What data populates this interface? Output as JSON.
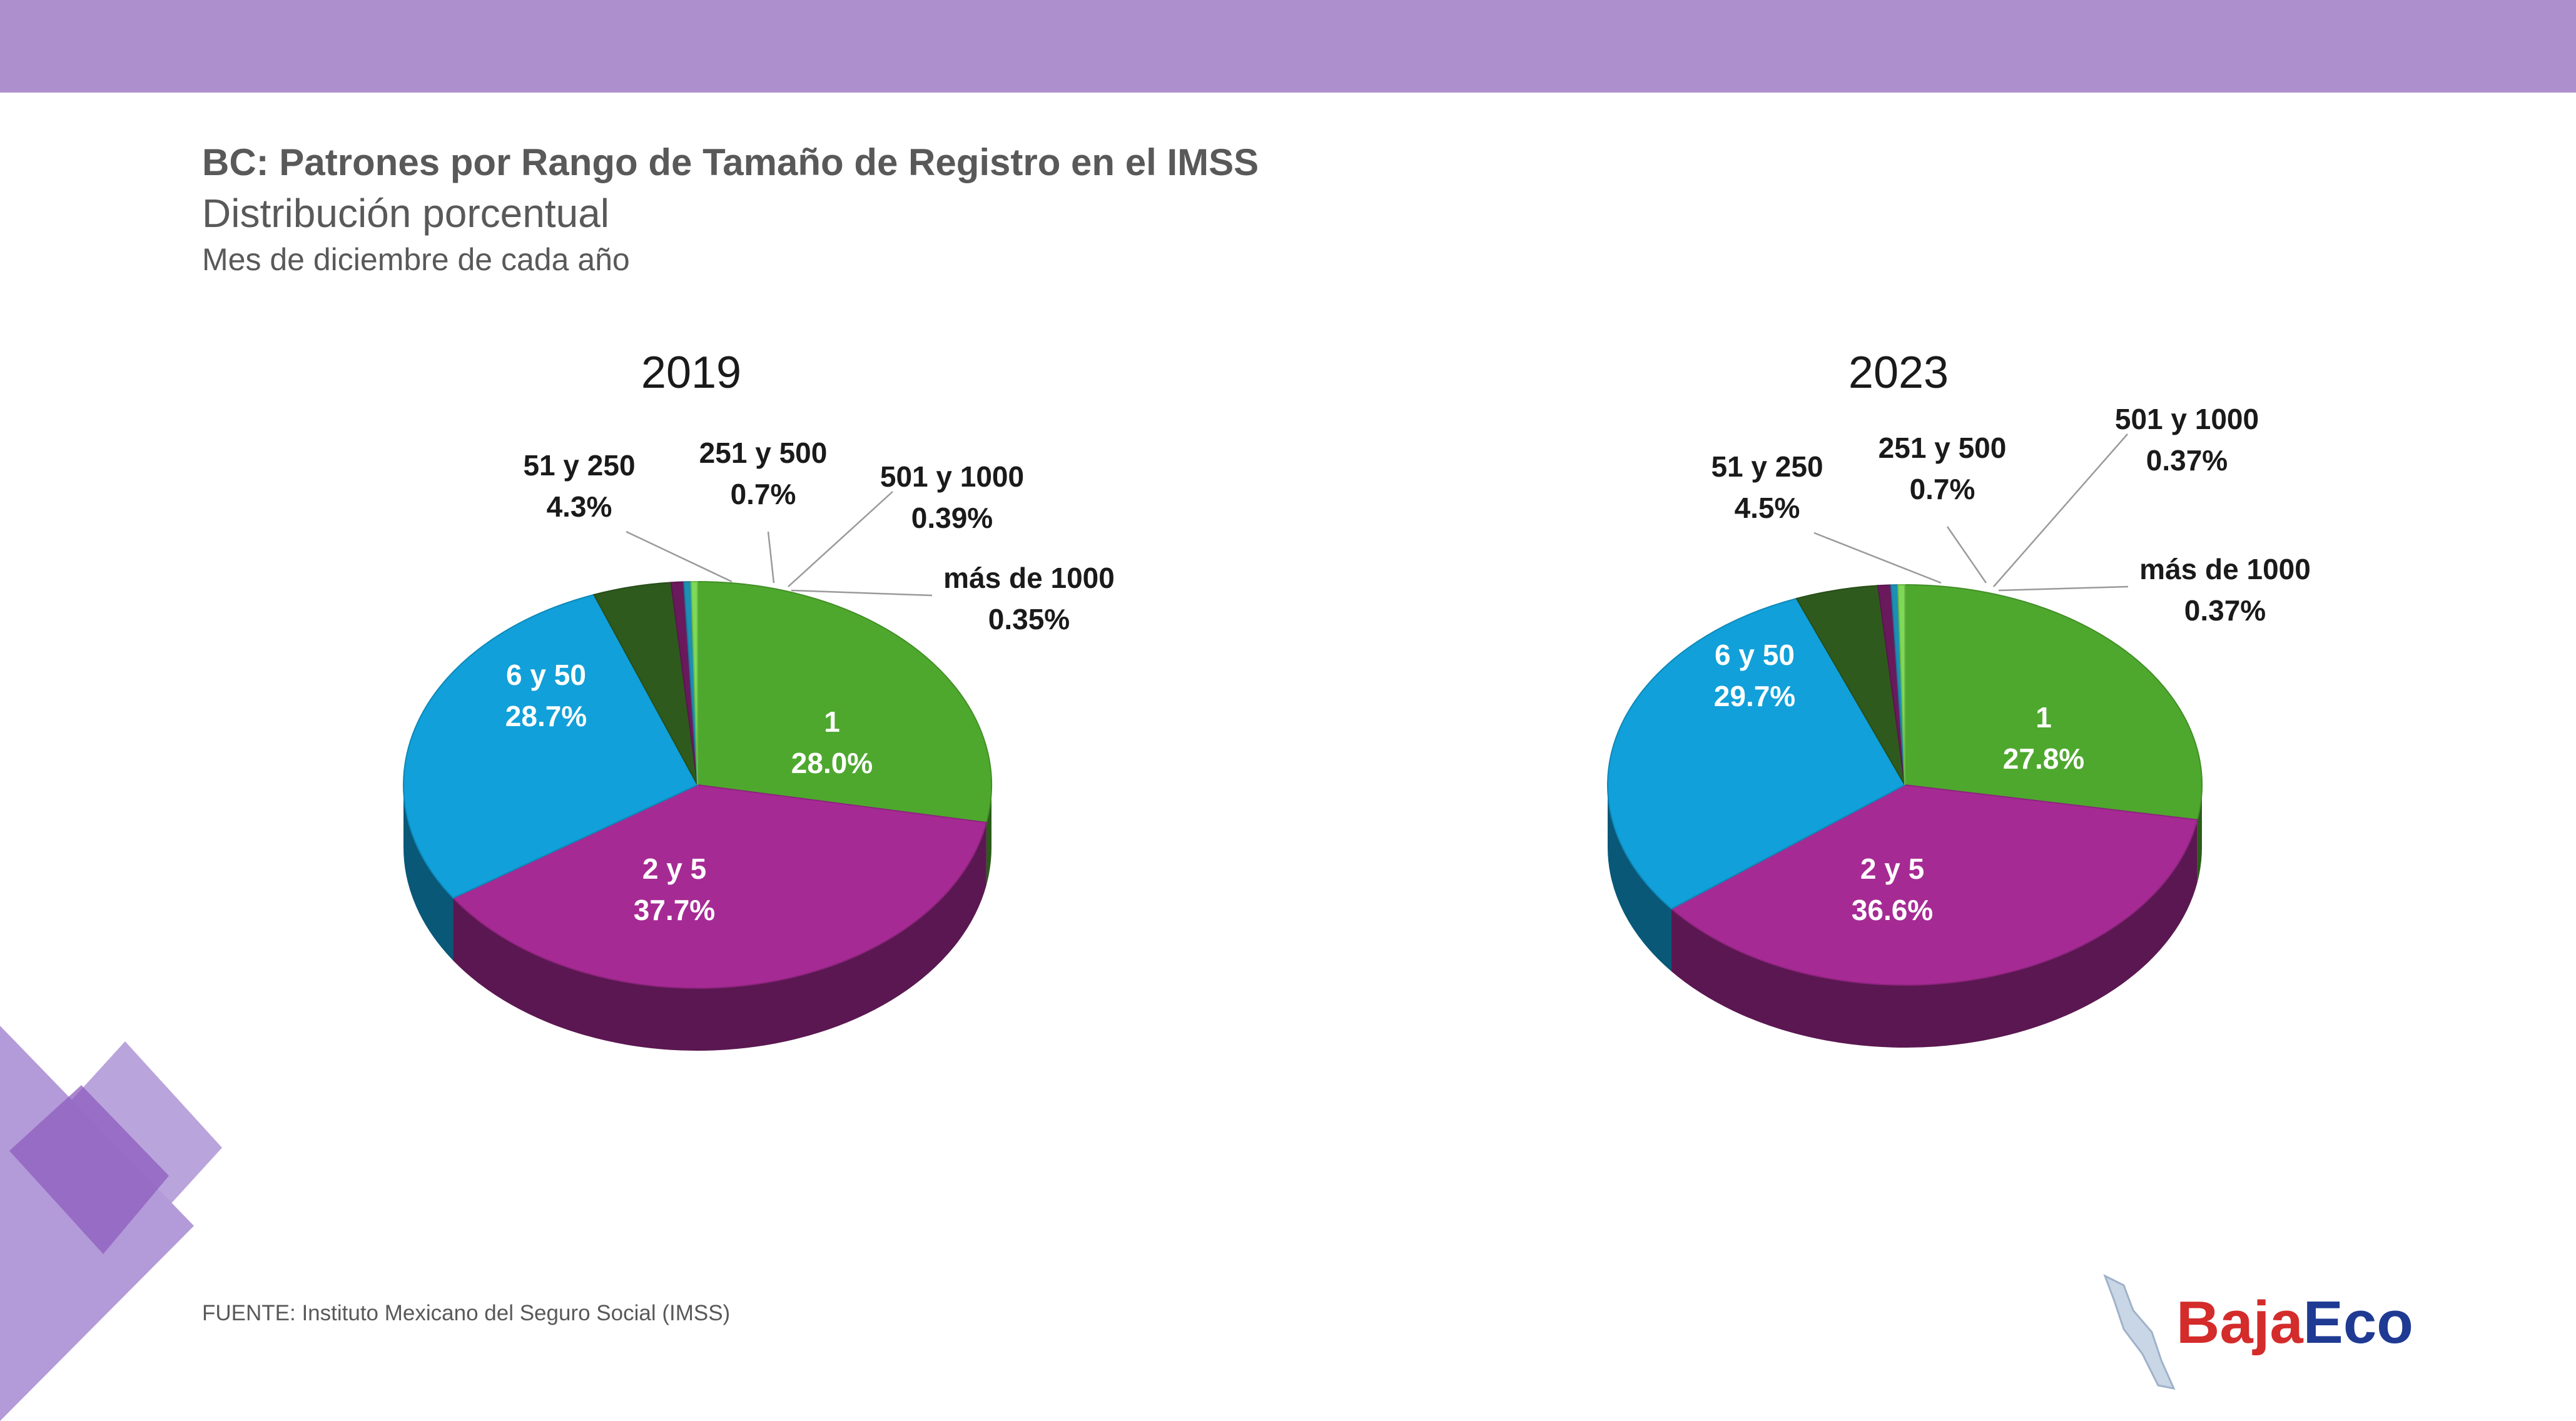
{
  "colors": {
    "band": "#ae8fcd",
    "decor_light": "#b39ad8",
    "decor_dark": "#8e5cbf",
    "text": "#595959",
    "series": {
      "1": "#4ea82e",
      "2 y 5": "#a62a94",
      "6 y 50": "#11a0d9",
      "51 y 250": "#2e5b1d",
      "251 y 500": "#6a1a5c",
      "501 y 1000": "#1c8fb5",
      "más de 1000": "#7ed957"
    }
  },
  "header": {
    "title": "BC: Patrones por Rango de Tamaño de Registro en el IMSS",
    "subtitle": "Distribución porcentual",
    "subsubtitle": "Mes de diciembre de cada año"
  },
  "source": "FUENTE: Instituto Mexicano del Seguro Social (IMSS)",
  "logo": {
    "part1": "Baja",
    "part2": "Eco"
  },
  "chart_data": [
    {
      "type": "pie",
      "title": "2019",
      "categories": [
        "1",
        "2 y 5",
        "6 y 50",
        "51 y 250",
        "251 y 500",
        "501 y 1000",
        "más de 1000"
      ],
      "values": [
        28.0,
        37.7,
        28.7,
        4.3,
        0.7,
        0.39,
        0.35
      ],
      "value_labels": [
        "28.0%",
        "37.7%",
        "28.7%",
        "4.3%",
        "0.7%",
        "0.39%",
        "0.35%"
      ]
    },
    {
      "type": "pie",
      "title": "2023",
      "categories": [
        "1",
        "2 y 5",
        "6 y 50",
        "51 y 250",
        "251 y 500",
        "501 y 1000",
        "más de 1000"
      ],
      "values": [
        27.8,
        36.6,
        29.7,
        4.5,
        0.7,
        0.37,
        0.37
      ],
      "value_labels": [
        "27.8%",
        "36.6%",
        "29.7%",
        "4.5%",
        "0.7%",
        "0.37%",
        "0.37%"
      ]
    }
  ]
}
